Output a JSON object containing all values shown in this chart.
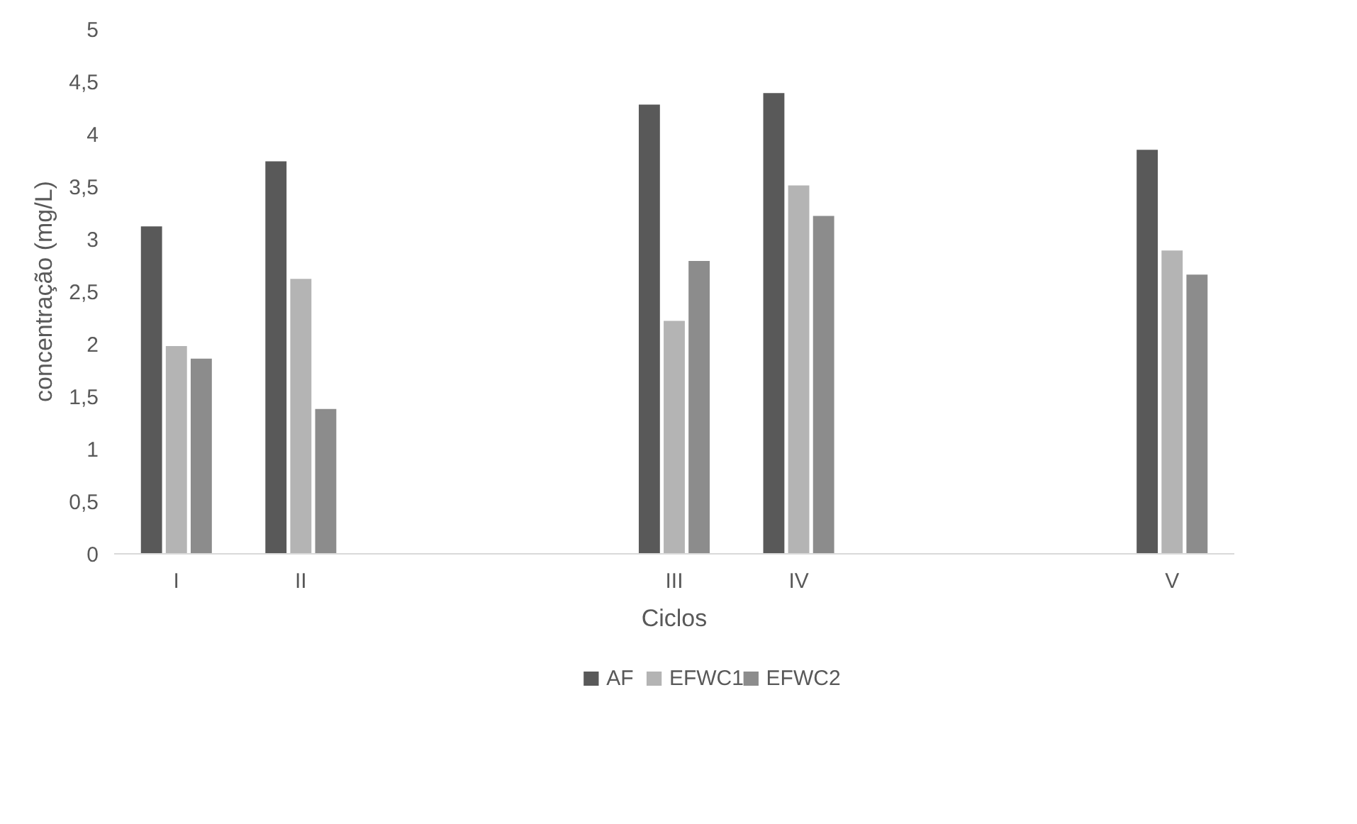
{
  "chart_data": {
    "type": "bar",
    "xlabel": "Ciclos",
    "ylabel": "concentração (mg/L)",
    "categories": [
      "I",
      "II",
      null,
      null,
      "III",
      "IV",
      null,
      null,
      "V"
    ],
    "series": [
      {
        "name": "AF",
        "color": "#595959",
        "values": [
          3.12,
          3.74,
          null,
          null,
          4.28,
          4.39,
          null,
          null,
          3.85
        ]
      },
      {
        "name": "EFWC1",
        "color": "#b4b4b4",
        "values": [
          1.98,
          2.62,
          null,
          null,
          2.22,
          3.51,
          null,
          null,
          2.89
        ]
      },
      {
        "name": "EFWC2",
        "color": "#8c8c8c",
        "values": [
          1.86,
          1.38,
          null,
          null,
          2.79,
          3.22,
          null,
          null,
          2.66
        ]
      }
    ],
    "ylim": [
      0,
      5
    ],
    "yticks": [
      0,
      {
        "value": 0.5,
        "label": "0,5"
      },
      1,
      {
        "value": 1.5,
        "label": "1,5"
      },
      2,
      {
        "value": 2.5,
        "label": "2,5"
      },
      3,
      {
        "value": 3.5,
        "label": "3,5"
      },
      4,
      {
        "value": 4.5,
        "label": "4,5"
      },
      5
    ],
    "grid": false,
    "legend": "bottom"
  }
}
